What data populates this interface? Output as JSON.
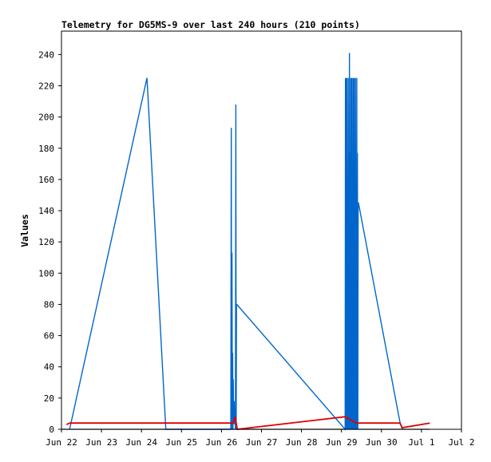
{
  "chart_data": {
    "type": "line",
    "title": "Telemetry for DG5MS-9 over last 240 hours (210 points)",
    "xlabel": "",
    "ylabel": "Values",
    "xlim": [
      0,
      240
    ],
    "ylim": [
      0,
      255
    ],
    "x_unit": "hours since Jun 22",
    "x_ticks": [
      {
        "x": 0,
        "label": "Jun 22"
      },
      {
        "x": 24,
        "label": "Jun 23"
      },
      {
        "x": 48,
        "label": "Jun 24"
      },
      {
        "x": 72,
        "label": "Jun 25"
      },
      {
        "x": 96,
        "label": "Jun 26"
      },
      {
        "x": 120,
        "label": "Jun 27"
      },
      {
        "x": 144,
        "label": "Jun 28"
      },
      {
        "x": 168,
        "label": "Jun 29"
      },
      {
        "x": 192,
        "label": "Jun 30"
      },
      {
        "x": 216,
        "label": "Jul 1"
      },
      {
        "x": 240,
        "label": "Jul 2"
      }
    ],
    "y_ticks": [
      0,
      20,
      40,
      60,
      80,
      100,
      120,
      140,
      160,
      180,
      200,
      220,
      240
    ],
    "grid": false,
    "legend": "none",
    "series": [
      {
        "color": "#0066cc",
        "x": [
          4.9,
          51.3,
          62.6,
          101.6,
          101.9,
          102.1,
          102.3,
          102.5,
          102.7,
          102.9,
          103.1,
          103.3,
          103.6,
          103.9,
          104.2,
          104.4,
          104.6,
          104.8,
          105.0,
          105.2,
          170.2,
          170.4,
          170.6,
          170.8,
          171.0,
          171.2,
          171.4,
          171.6,
          171.8,
          172.0,
          172.2,
          172.4,
          172.6,
          172.8,
          173.0,
          173.2,
          173.4,
          173.6,
          173.8,
          174.0,
          174.2,
          174.4,
          174.6,
          174.8,
          175.0,
          175.2,
          175.4,
          175.6,
          175.8,
          176.0,
          176.2,
          176.4,
          176.6,
          176.8,
          177.0,
          177.2,
          177.4,
          177.6,
          177.8,
          178.0,
          178.2,
          203.0,
          204.5
        ],
        "y": [
          0,
          225,
          0,
          0,
          193,
          0,
          113,
          0,
          49,
          0,
          32,
          5,
          18,
          3,
          13,
          0,
          208,
          0,
          80,
          80,
          0,
          225,
          0,
          225,
          0,
          225,
          0,
          161,
          0,
          225,
          0,
          113,
          0,
          241,
          0,
          177,
          0,
          225,
          0,
          225,
          0,
          225,
          0,
          145,
          0,
          225,
          0,
          225,
          0,
          161,
          0,
          225,
          0,
          145,
          0,
          225,
          0,
          177,
          0,
          145,
          145,
          5,
          0
        ]
      },
      {
        "color": "#dd0000",
        "x": [
          3.0,
          5.0,
          62.6,
          101.4,
          103.2,
          104.2,
          105.5,
          170.0,
          177.0,
          203.0,
          204.5,
          221.0
        ],
        "y": [
          3,
          4,
          4,
          4,
          4,
          8,
          0,
          8,
          4,
          4,
          1,
          4
        ]
      }
    ]
  }
}
